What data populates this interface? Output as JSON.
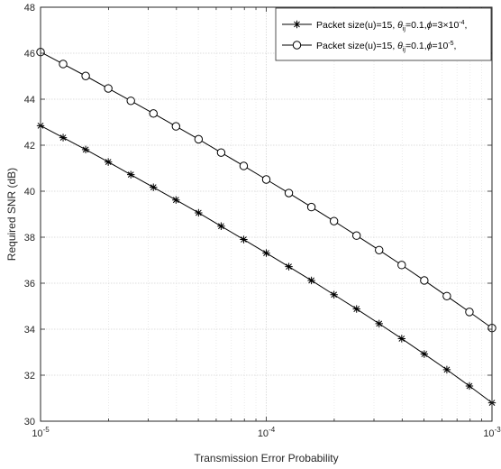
{
  "chart_data": {
    "type": "line",
    "x_scale": "log",
    "x": [
      1e-05,
      1.2589e-05,
      1.5849e-05,
      1.9953e-05,
      2.5119e-05,
      3.1623e-05,
      3.9811e-05,
      5.0119e-05,
      6.3096e-05,
      7.9433e-05,
      0.0001,
      0.00012589,
      0.00015849,
      0.00019953,
      0.00025119,
      0.00031623,
      0.00039811,
      0.00050119,
      0.00063096,
      0.00079433,
      0.001
    ],
    "series": [
      {
        "name_parts": [
          "Packet size(u)=15,  ",
          "θ",
          "ij",
          "=0.1,",
          "ϕ",
          "=3×10",
          "-4",
          ","
        ],
        "marker": "asterisk",
        "color": "#000000",
        "values": [
          42.85,
          42.33,
          41.81,
          41.27,
          40.72,
          40.17,
          39.62,
          39.06,
          38.48,
          37.9,
          37.31,
          36.72,
          36.12,
          35.5,
          34.88,
          34.24,
          33.59,
          32.92,
          32.24,
          31.53,
          30.8
        ]
      },
      {
        "name_parts": [
          "Packet size(u)=15, ",
          "θ",
          "ij",
          "=0.1,",
          "ϕ",
          "=10",
          "-5",
          ","
        ],
        "marker": "circle",
        "color": "#000000",
        "values": [
          46.05,
          45.53,
          45.01,
          44.47,
          43.93,
          43.38,
          42.82,
          42.26,
          41.68,
          41.1,
          40.51,
          39.92,
          39.31,
          38.7,
          38.07,
          37.44,
          36.79,
          36.12,
          35.44,
          34.75,
          34.05
        ]
      }
    ],
    "xlabel": "Transmission Error Probability",
    "ylabel": "Required SNR (dB)",
    "xlim": [
      1e-05,
      0.001
    ],
    "ylim": [
      30,
      48
    ],
    "yticks": [
      30,
      32,
      34,
      36,
      38,
      40,
      42,
      44,
      46,
      48
    ],
    "xticks": [
      {
        "value": 1e-05,
        "base": "10",
        "exp": "-5"
      },
      {
        "value": 0.0001,
        "base": "10",
        "exp": "-4"
      },
      {
        "value": 0.001,
        "base": "10",
        "exp": "-3"
      }
    ],
    "grid": true,
    "legend_position": "top-right"
  }
}
